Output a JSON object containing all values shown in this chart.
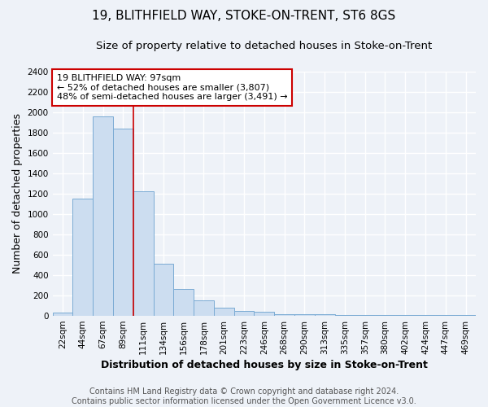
{
  "title": "19, BLITHFIELD WAY, STOKE-ON-TRENT, ST6 8GS",
  "subtitle": "Size of property relative to detached houses in Stoke-on-Trent",
  "xlabel": "Distribution of detached houses by size in Stoke-on-Trent",
  "ylabel": "Number of detached properties",
  "footer_line1": "Contains HM Land Registry data © Crown copyright and database right 2024.",
  "footer_line2": "Contains public sector information licensed under the Open Government Licence v3.0.",
  "bin_labels": [
    "22sqm",
    "44sqm",
    "67sqm",
    "89sqm",
    "111sqm",
    "134sqm",
    "156sqm",
    "178sqm",
    "201sqm",
    "223sqm",
    "246sqm",
    "268sqm",
    "290sqm",
    "313sqm",
    "335sqm",
    "357sqm",
    "380sqm",
    "402sqm",
    "424sqm",
    "447sqm",
    "469sqm"
  ],
  "bar_heights": [
    30,
    1150,
    1960,
    1840,
    1220,
    515,
    265,
    155,
    82,
    48,
    38,
    15,
    20,
    18,
    10,
    8,
    5,
    5,
    5,
    5,
    5
  ],
  "bar_color": "#ccddf0",
  "bar_edge_color": "#7aabd4",
  "ylim": [
    0,
    2400
  ],
  "yticks": [
    0,
    200,
    400,
    600,
    800,
    1000,
    1200,
    1400,
    1600,
    1800,
    2000,
    2200,
    2400
  ],
  "property_line_x": 3.5,
  "property_line_color": "#cc0000",
  "annotation_title": "19 BLITHFIELD WAY: 97sqm",
  "annotation_line1": "← 52% of detached houses are smaller (3,807)",
  "annotation_line2": "48% of semi-detached houses are larger (3,491) →",
  "annotation_box_color": "#ffffff",
  "annotation_box_edge_color": "#cc0000",
  "background_color": "#eef2f8",
  "grid_color": "#ffffff",
  "title_fontsize": 11,
  "subtitle_fontsize": 9.5,
  "axis_label_fontsize": 9,
  "tick_fontsize": 7.5,
  "annotation_fontsize": 8,
  "footer_fontsize": 7
}
